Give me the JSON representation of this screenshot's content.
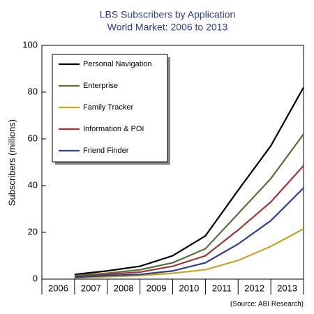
{
  "chart_data": {
    "type": "line",
    "title": "LBS Subscribers by Application",
    "subtitle": "World Market: 2006 to 2013",
    "y_label": "Subscribers (millions)",
    "source": "(Source: ABI Research)",
    "categories": [
      "2006",
      "2007",
      "2008",
      "2009",
      "2010",
      "2011",
      "2012",
      "2013"
    ],
    "series": [
      {
        "name": "Personal Navigation",
        "color": "#000000",
        "values": [
          2,
          3.5,
          5.5,
          10,
          18.5,
          38,
          57,
          82
        ]
      },
      {
        "name": "Enterprise",
        "color": "#5a6e35",
        "values": [
          1.5,
          2.5,
          4,
          7,
          13,
          28,
          43,
          62
        ]
      },
      {
        "name": "Family Tracker",
        "color": "#c8a52a",
        "values": [
          0.5,
          1,
          1.5,
          2.5,
          4,
          8,
          14,
          21.5
        ]
      },
      {
        "name": "Information & POI",
        "color": "#9b3535",
        "values": [
          1,
          2,
          3,
          5.5,
          10,
          21,
          33,
          48.5
        ]
      },
      {
        "name": "Friend Finder",
        "color": "#2a3f8f",
        "values": [
          0.8,
          1.5,
          2,
          3.5,
          7,
          15,
          25,
          39
        ]
      }
    ],
    "ylim": [
      0,
      100
    ],
    "yticks": [
      0,
      20,
      40,
      60,
      80,
      100
    ],
    "legend": "upper left"
  }
}
